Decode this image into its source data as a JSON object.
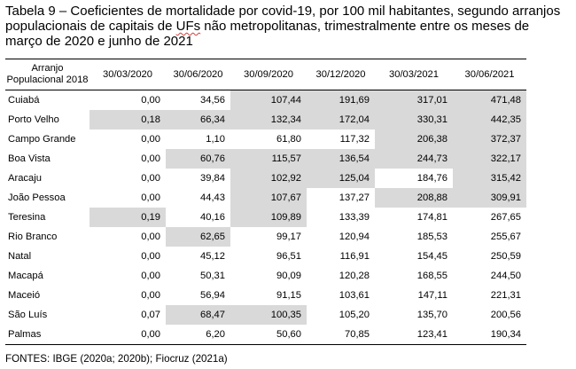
{
  "caption": {
    "pre": "Tabela 9 – Coeficientes de mortalidade por covid-19, por 100 mil habitantes, segundo arranjos populacionais de capitais de ",
    "ufs": "UFs",
    "post": " não metropolitanas, trimestralmente entre os meses de março de 2020 e junho de 2021"
  },
  "table": {
    "header_line1": "Arranjo",
    "header_line2": "Populacional 2018",
    "dates": [
      "30/03/2020",
      "30/06/2020",
      "30/09/2020",
      "30/12/2020",
      "30/03/2021",
      "30/06/2021"
    ],
    "highlight_color": "#d9d9d9",
    "rows": [
      {
        "name": "Cuiabá",
        "values": [
          "0,00",
          "34,56",
          "107,44",
          "191,69",
          "317,01",
          "471,48"
        ],
        "shaded": [
          false,
          false,
          true,
          true,
          true,
          true
        ]
      },
      {
        "name": "Porto Velho",
        "values": [
          "0,18",
          "66,34",
          "132,34",
          "172,04",
          "330,31",
          "442,35"
        ],
        "shaded": [
          true,
          true,
          true,
          true,
          true,
          true
        ]
      },
      {
        "name": "Campo Grande",
        "values": [
          "0,00",
          "1,10",
          "61,80",
          "117,32",
          "206,38",
          "372,37"
        ],
        "shaded": [
          false,
          false,
          false,
          false,
          true,
          true
        ]
      },
      {
        "name": "Boa Vista",
        "values": [
          "0,00",
          "60,76",
          "115,57",
          "136,54",
          "244,73",
          "322,17"
        ],
        "shaded": [
          false,
          true,
          true,
          true,
          true,
          true
        ]
      },
      {
        "name": "Aracaju",
        "values": [
          "0,00",
          "39,84",
          "102,92",
          "125,04",
          "184,76",
          "315,42"
        ],
        "shaded": [
          false,
          false,
          true,
          true,
          false,
          true
        ]
      },
      {
        "name": "João Pessoa",
        "values": [
          "0,00",
          "44,43",
          "107,67",
          "137,27",
          "208,88",
          "309,91"
        ],
        "shaded": [
          false,
          false,
          true,
          false,
          true,
          true
        ]
      },
      {
        "name": "Teresina",
        "values": [
          "0,19",
          "40,16",
          "109,89",
          "133,39",
          "174,81",
          "267,65"
        ],
        "shaded": [
          true,
          false,
          true,
          false,
          false,
          false
        ]
      },
      {
        "name": "Rio Branco",
        "values": [
          "0,00",
          "62,65",
          "99,17",
          "120,94",
          "185,53",
          "255,67"
        ],
        "shaded": [
          false,
          true,
          false,
          false,
          false,
          false
        ]
      },
      {
        "name": "Natal",
        "values": [
          "0,00",
          "45,12",
          "96,51",
          "116,91",
          "154,45",
          "250,59"
        ],
        "shaded": [
          false,
          false,
          false,
          false,
          false,
          false
        ]
      },
      {
        "name": "Macapá",
        "values": [
          "0,00",
          "50,31",
          "90,09",
          "120,28",
          "168,55",
          "244,50"
        ],
        "shaded": [
          false,
          false,
          false,
          false,
          false,
          false
        ]
      },
      {
        "name": "Maceió",
        "values": [
          "0,00",
          "56,94",
          "91,15",
          "103,61",
          "147,11",
          "221,31"
        ],
        "shaded": [
          false,
          false,
          false,
          false,
          false,
          false
        ]
      },
      {
        "name": "São Luís",
        "values": [
          "0,07",
          "68,47",
          "100,35",
          "105,20",
          "135,70",
          "200,56"
        ],
        "shaded": [
          false,
          true,
          true,
          false,
          false,
          false
        ]
      },
      {
        "name": "Palmas",
        "values": [
          "0,00",
          "6,20",
          "50,60",
          "70,85",
          "123,41",
          "190,34"
        ],
        "shaded": [
          false,
          false,
          false,
          false,
          false,
          false
        ]
      }
    ]
  },
  "source": "FONTES: IBGE (2020a; 2020b); Fiocruz (2021a)"
}
